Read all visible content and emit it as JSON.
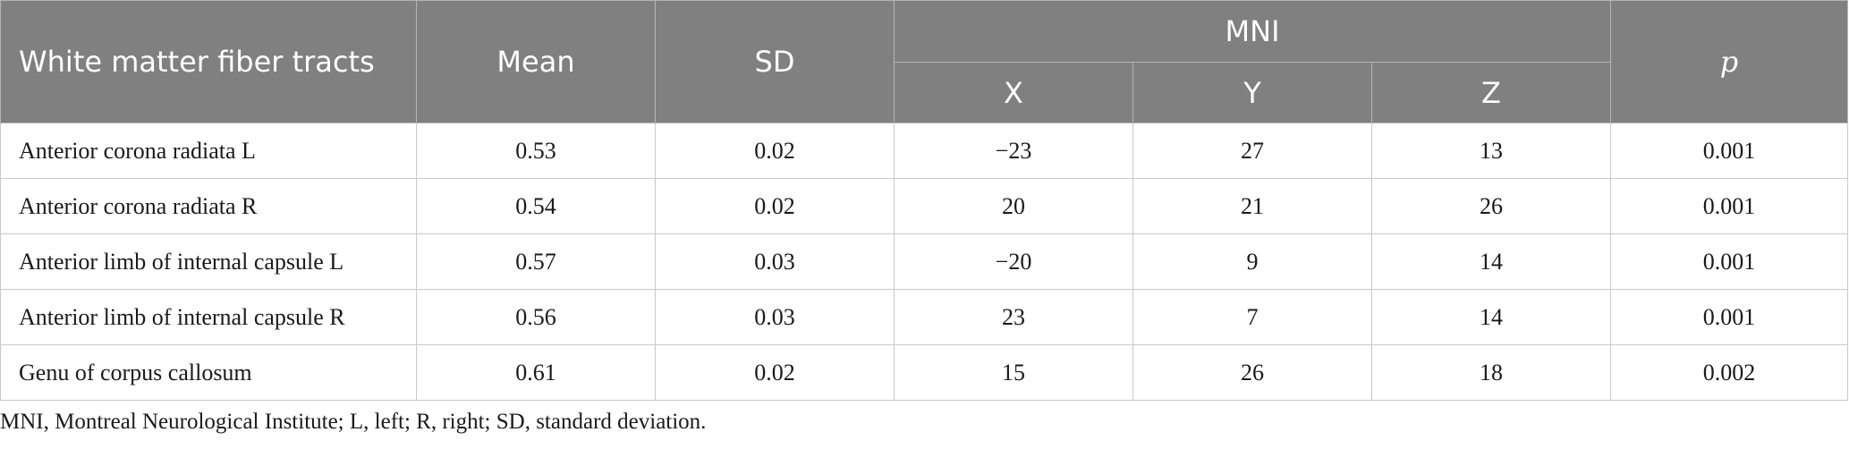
{
  "header": {
    "tract_label": "White matter fiber tracts",
    "mean_label": "Mean",
    "sd_label": "SD",
    "mni_label": "MNI",
    "x_label": "X",
    "y_label": "Y",
    "z_label": "Z",
    "p_label": "p"
  },
  "rows": [
    {
      "tract": "Anterior corona radiata L",
      "mean": "0.53",
      "sd": "0.02",
      "x": "−23",
      "y": "27",
      "z": "13",
      "p": "0.001"
    },
    {
      "tract": "Anterior corona radiata R",
      "mean": "0.54",
      "sd": "0.02",
      "x": "20",
      "y": "21",
      "z": "26",
      "p": "0.001"
    },
    {
      "tract": "Anterior limb of internal capsule L",
      "mean": "0.57",
      "sd": "0.03",
      "x": "−20",
      "y": "9",
      "z": "14",
      "p": "0.001"
    },
    {
      "tract": "Anterior limb of internal capsule R",
      "mean": "0.56",
      "sd": "0.03",
      "x": "23",
      "y": "7",
      "z": "14",
      "p": "0.001"
    },
    {
      "tract": "Genu of corpus callosum",
      "mean": "0.61",
      "sd": "0.02",
      "x": "15",
      "y": "26",
      "z": "18",
      "p": "0.002"
    }
  ],
  "footnote": "MNI, Montreal Neurological Institute; L, left; R, right; SD, standard deviation.",
  "colors": {
    "header_bg": "#808080",
    "header_text": "#ffffff",
    "grid": "#c9c9c9"
  }
}
